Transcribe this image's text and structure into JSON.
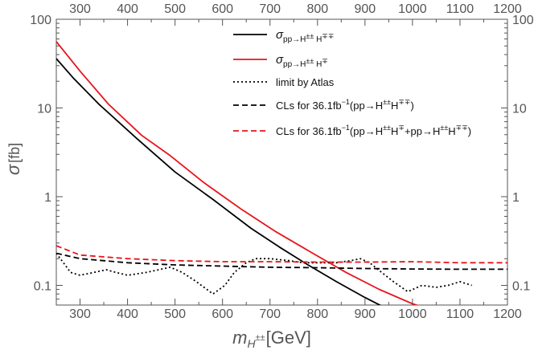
{
  "chart_data": {
    "type": "line",
    "x_scale": "linear",
    "y_scale": "log",
    "xlim": [
      250,
      1200
    ],
    "ylim": [
      0.06,
      100
    ],
    "x_ticks": [
      300,
      400,
      500,
      600,
      700,
      800,
      900,
      1000,
      1100,
      1200
    ],
    "x_tick_labels": [
      "300",
      "400",
      "500",
      "600",
      "700",
      "800",
      "900",
      "1000",
      "1100",
      "1200"
    ],
    "y_ticks": [
      0.1,
      1,
      10,
      100
    ],
    "y_tick_labels": [
      "0.1",
      "1",
      "10",
      "100"
    ],
    "xlabel": {
      "symbol": "m",
      "subscript": "H",
      "subscript_sup": "±±",
      "unit": "[GeV]"
    },
    "ylabel": {
      "symbol": "σ",
      "unit": "[fb]"
    },
    "grid": false,
    "mirror_ticks": true,
    "legend_position": "top-right",
    "series": [
      {
        "key": "sigma_pair",
        "color": "#000000",
        "dash": "solid",
        "legend": {
          "main": "σ",
          "sub_base": "pp→H",
          "sub_sup1": "±±",
          "sub_mid": " H",
          "sub_sup2": "∓∓",
          "sub_end": ""
        },
        "x": [
          250,
          285,
          340,
          420,
          500,
          580,
          660,
          720,
          780,
          840,
          900,
          960
        ],
        "y": [
          36,
          22,
          11,
          4.5,
          1.9,
          0.93,
          0.44,
          0.27,
          0.17,
          0.11,
          0.073,
          0.05
        ]
      },
      {
        "key": "sigma_assoc",
        "color": "#e8141b",
        "dash": "solid",
        "legend": {
          "main": "σ",
          "sub_base": "pp→H",
          "sub_sup1": "±±",
          "sub_mid": " H",
          "sub_sup2": "∓",
          "sub_end": ""
        },
        "x": [
          250,
          300,
          360,
          430,
          490,
          560,
          640,
          710,
          790,
          860,
          930,
          1000,
          1030
        ],
        "y": [
          56,
          26,
          11,
          4.9,
          2.9,
          1.45,
          0.72,
          0.41,
          0.23,
          0.14,
          0.09,
          0.062,
          0.055
        ]
      },
      {
        "key": "atlas_limit",
        "color": "#000000",
        "dash": "dotted",
        "legend": {
          "main": "limit by Atlas"
        },
        "x": [
          250,
          265,
          280,
          300,
          330,
          355,
          375,
          400,
          440,
          490,
          515,
          545,
          580,
          605,
          625,
          650,
          670,
          700,
          740,
          770,
          800,
          840,
          870,
          890,
          910,
          935,
          960,
          990,
          1020,
          1050,
          1075,
          1100,
          1125
        ],
        "y": [
          0.23,
          0.18,
          0.14,
          0.13,
          0.14,
          0.15,
          0.14,
          0.13,
          0.14,
          0.16,
          0.14,
          0.11,
          0.08,
          0.1,
          0.14,
          0.18,
          0.2,
          0.2,
          0.19,
          0.18,
          0.18,
          0.18,
          0.19,
          0.2,
          0.18,
          0.14,
          0.11,
          0.085,
          0.1,
          0.095,
          0.1,
          0.11,
          0.1
        ]
      },
      {
        "key": "cls_pair",
        "color": "#000000",
        "dash": "dashed",
        "legend": {
          "main": "CLs for 36.1fb",
          "main_sup": "−1",
          "paren_open": "(pp→H",
          "sup1": "±±",
          "mid": "H",
          "sup2": "∓∓",
          "paren_close": ")"
        },
        "x": [
          250,
          300,
          400,
          500,
          600,
          700,
          800,
          900,
          1000,
          1100,
          1200
        ],
        "y": [
          0.23,
          0.2,
          0.18,
          0.17,
          0.165,
          0.16,
          0.158,
          0.155,
          0.153,
          0.152,
          0.152
        ]
      },
      {
        "key": "cls_combined",
        "color": "#e8141b",
        "dash": "dashed",
        "legend": {
          "main": "CLs for 36.1fb",
          "main_sup": "−1",
          "paren_open": "(pp→H",
          "sup1": "±±",
          "mid": "H",
          "sup2": "∓",
          "plus": "+pp→H",
          "sup3": "±±",
          "mid2": "H",
          "sup4": "∓∓",
          "paren_close": ")"
        },
        "x": [
          250,
          300,
          400,
          500,
          600,
          700,
          800,
          900,
          1000,
          1100,
          1200
        ],
        "y": [
          0.28,
          0.22,
          0.2,
          0.19,
          0.185,
          0.185,
          0.183,
          0.183,
          0.185,
          0.18,
          0.18
        ]
      }
    ]
  }
}
